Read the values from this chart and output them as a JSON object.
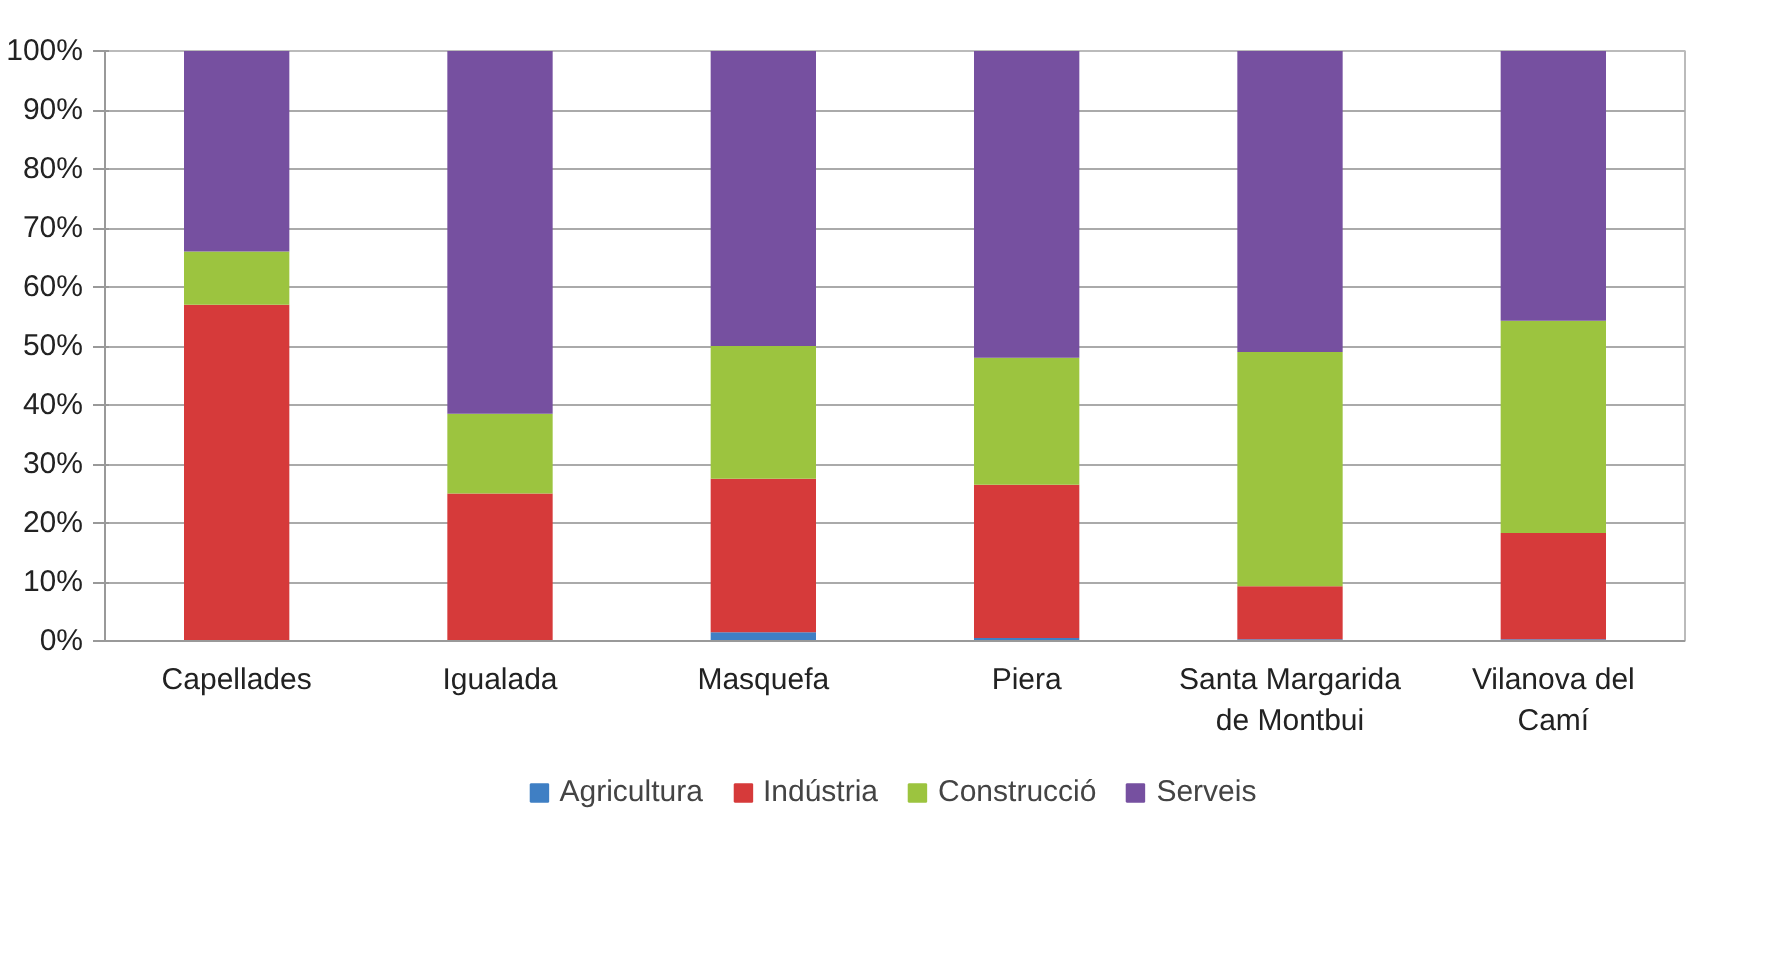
{
  "chart_data": {
    "type": "bar",
    "stacked": true,
    "categories": [
      "Capellades",
      "Igualada",
      "Masquefa",
      "Piera",
      "Santa Margarida de Montbui",
      "Vilanova del Camí"
    ],
    "series": [
      {
        "name": "Agricultura",
        "color": "#3f7fc4",
        "values": [
          0,
          0,
          1.5,
          0.5,
          0.3,
          0.3
        ]
      },
      {
        "name": "Indústria",
        "color": "#d63a3a",
        "values": [
          57,
          25,
          26,
          26,
          9,
          18
        ]
      },
      {
        "name": "Construcció",
        "color": "#9cc43f",
        "values": [
          9,
          13.5,
          22.5,
          21.5,
          39.7,
          36
        ]
      },
      {
        "name": "Serveis",
        "color": "#7650a0",
        "values": [
          34,
          61.5,
          50,
          52,
          51,
          45.7
        ]
      }
    ],
    "ylim": [
      0,
      100
    ],
    "yticks": [
      {
        "value": 0,
        "label": "0%"
      },
      {
        "value": 10,
        "label": "10%"
      },
      {
        "value": 20,
        "label": "20%"
      },
      {
        "value": 30,
        "label": "30%"
      },
      {
        "value": 40,
        "label": "40%"
      },
      {
        "value": 50,
        "label": "50%"
      },
      {
        "value": 60,
        "label": "60%"
      },
      {
        "value": 70,
        "label": "70%"
      },
      {
        "value": 80,
        "label": "80%"
      },
      {
        "value": 90,
        "label": "90%"
      },
      {
        "value": 100,
        "label": "100%"
      }
    ],
    "grid": "y",
    "legend": "bottom"
  }
}
